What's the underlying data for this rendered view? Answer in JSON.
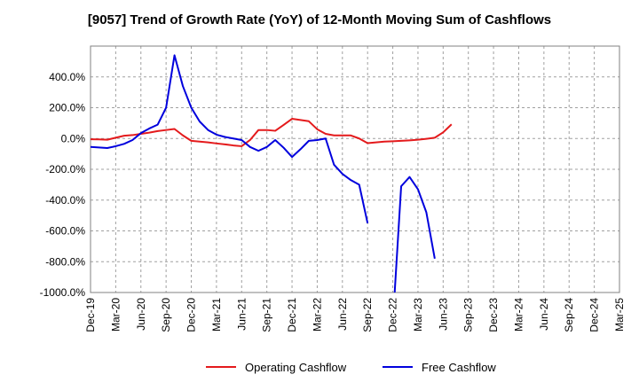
{
  "chart_data": {
    "type": "line",
    "title": "[9057]  Trend of Growth Rate (YoY) of 12-Month Moving Sum of Cashflows",
    "xlabel": "",
    "ylabel": "",
    "ylim": [
      -1000,
      600
    ],
    "y_ticks": [
      400,
      200,
      0,
      -200,
      -400,
      -600,
      -800,
      -1000
    ],
    "y_tick_labels": [
      "400.0%",
      "200.0%",
      "0.0%",
      "-200.0%",
      "-400.0%",
      "-600.0%",
      "-800.0%",
      "-1000.0%"
    ],
    "x_tick_labels": [
      "Dec-19",
      "Mar-20",
      "Jun-20",
      "Sep-20",
      "Dec-20",
      "Mar-21",
      "Jun-21",
      "Sep-21",
      "Dec-21",
      "Mar-22",
      "Jun-22",
      "Sep-22",
      "Dec-22",
      "Mar-23",
      "Jun-23",
      "Sep-23",
      "Dec-23",
      "Mar-24",
      "Jun-24",
      "Sep-24",
      "Dec-24",
      "Mar-25"
    ],
    "grid": true,
    "legend_position": "bottom",
    "series": [
      {
        "name": "Operating Cashflow",
        "color": "#e41a1c",
        "values": [
          -5,
          -6,
          -8,
          5,
          18,
          22,
          30,
          38,
          48,
          55,
          62,
          20,
          -15,
          -20,
          -25,
          -32,
          -38,
          -45,
          -50,
          -10,
          55,
          55,
          50,
          88,
          128,
          120,
          112,
          60,
          30,
          20,
          20,
          20,
          0,
          -30,
          -25,
          -20,
          -18,
          -15,
          -12,
          -8,
          -2,
          5,
          40,
          92,
          null,
          null,
          null,
          null,
          null,
          null,
          null,
          null,
          null,
          null,
          null,
          null,
          null,
          null,
          null,
          null,
          null,
          null,
          null,
          null,
          null
        ]
      },
      {
        "name": "Free Cashflow",
        "color": "#0000dd",
        "values": [
          -55,
          -58,
          -62,
          -50,
          -35,
          -10,
          35,
          65,
          90,
          200,
          540,
          340,
          200,
          110,
          55,
          25,
          10,
          0,
          -10,
          -55,
          -80,
          -55,
          -10,
          -60,
          -120,
          -70,
          -15,
          -10,
          0,
          -170,
          -230,
          -270,
          -300,
          -550,
          null,
          null,
          -1200,
          -310,
          -250,
          -330,
          -480,
          -780,
          null,
          null,
          null,
          null,
          null,
          null,
          null,
          null,
          null,
          null,
          null,
          null,
          null,
          null,
          null,
          null,
          null,
          null,
          null,
          null,
          null,
          null,
          null
        ]
      }
    ]
  }
}
